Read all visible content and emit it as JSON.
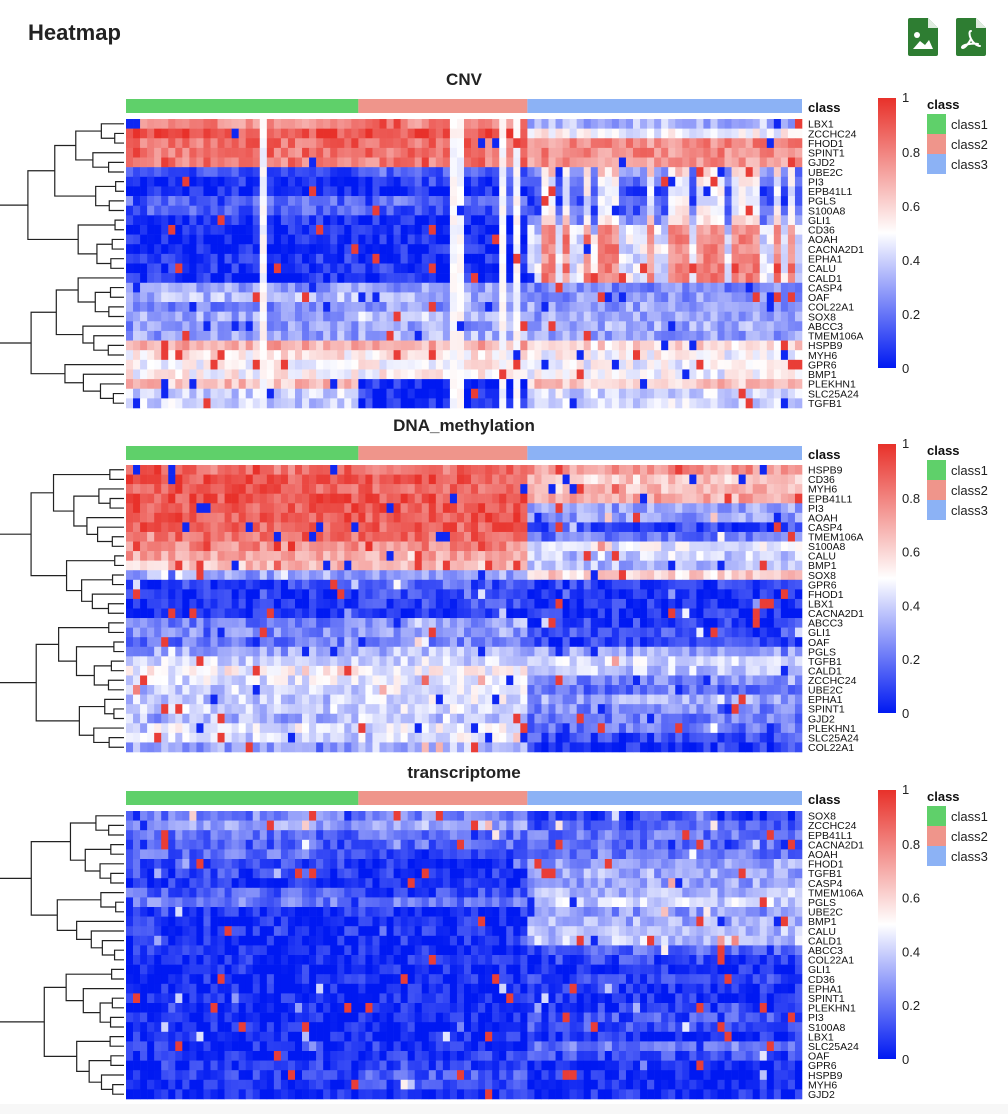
{
  "page": {
    "title": "Heatmap",
    "download_image_label": "Download image",
    "download_pdf_label": "Download PDF"
  },
  "chart_data": [
    {
      "type": "heatmap",
      "title": "CNV",
      "annotation_label": "class",
      "class_counts": {
        "class1": 33,
        "class2": 24,
        "class3": 39
      },
      "rows": [
        "LBX1",
        "ZCCHC24",
        "FHOD1",
        "SPINT1",
        "GJD2",
        "UBE2C",
        "PI3",
        "EPB41L1",
        "PGLS",
        "S100A8",
        "GLI1",
        "CD36",
        "AOAH",
        "CACNA2D1",
        "EPHA1",
        "CALU",
        "CALD1",
        "CASP4",
        "OAF",
        "COL22A1",
        "SOX8",
        "ABCC3",
        "TMEM106A",
        "HSPB9",
        "MYH6",
        "GPR6",
        "BMP1",
        "PLEKHN1",
        "SLC25A24",
        "TGFB1"
      ],
      "row_profiles": {
        "class1": [
          0.78,
          0.92,
          0.85,
          0.84,
          0.82,
          0.15,
          0.04,
          0.03,
          0.18,
          0.15,
          0.05,
          0.05,
          0.03,
          0.05,
          0.06,
          0.05,
          0.05,
          0.28,
          0.35,
          0.25,
          0.3,
          0.28,
          0.3,
          0.7,
          0.55,
          0.52,
          0.52,
          0.65,
          0.4,
          0.4
        ],
        "class2": [
          0.8,
          0.92,
          0.85,
          0.84,
          0.82,
          0.18,
          0.08,
          0.04,
          0.18,
          0.12,
          0.03,
          0.03,
          0.03,
          0.04,
          0.04,
          0.06,
          0.04,
          0.28,
          0.32,
          0.28,
          0.38,
          0.3,
          0.34,
          0.7,
          0.55,
          0.52,
          0.52,
          0.04,
          0.06,
          0.05
        ],
        "class3": [
          0.35,
          0.5,
          0.78,
          0.78,
          0.75,
          0.25,
          0.15,
          0.12,
          0.12,
          0.15,
          0.25,
          0.4,
          0.45,
          0.45,
          0.42,
          0.45,
          0.45,
          0.25,
          0.28,
          0.3,
          0.3,
          0.32,
          0.3,
          0.6,
          0.5,
          0.48,
          0.48,
          0.65,
          0.42,
          0.42
        ]
      },
      "colorbar": {
        "min": 0,
        "max": 1,
        "ticks": [
          "0",
          "0.2",
          "0.4",
          "0.6",
          "0.8",
          "1"
        ]
      },
      "legend": {
        "title": "class",
        "items": [
          "class1",
          "class2",
          "class3"
        ]
      }
    },
    {
      "type": "heatmap",
      "title": "DNA_methylation",
      "annotation_label": "class",
      "class_counts": {
        "class1": 33,
        "class2": 24,
        "class3": 39
      },
      "rows": [
        "HSPB9",
        "CD36",
        "MYH6",
        "EPB41L1",
        "PI3",
        "AOAH",
        "CASP4",
        "TMEM106A",
        "S100A8",
        "CALU",
        "BMP1",
        "SOX8",
        "GPR6",
        "FHOD1",
        "LBX1",
        "CACNA2D1",
        "ABCC3",
        "GLI1",
        "OAF",
        "PGLS",
        "TGFB1",
        "CALD1",
        "ZCCHC24",
        "UBE2C",
        "EPHA1",
        "SPINT1",
        "GJD2",
        "PLEKHN1",
        "SLC25A24",
        "COL22A1"
      ],
      "row_profiles": {
        "class1": [
          0.85,
          0.9,
          0.88,
          0.92,
          0.9,
          0.9,
          0.88,
          0.85,
          0.78,
          0.72,
          0.65,
          0.3,
          0.08,
          0.04,
          0.04,
          0.04,
          0.2,
          0.25,
          0.2,
          0.3,
          0.4,
          0.5,
          0.45,
          0.4,
          0.38,
          0.4,
          0.35,
          0.45,
          0.4,
          0.3
        ],
        "class2": [
          0.85,
          0.9,
          0.88,
          0.92,
          0.9,
          0.9,
          0.88,
          0.85,
          0.78,
          0.72,
          0.65,
          0.3,
          0.18,
          0.12,
          0.1,
          0.05,
          0.3,
          0.3,
          0.25,
          0.35,
          0.42,
          0.5,
          0.45,
          0.45,
          0.45,
          0.45,
          0.4,
          0.45,
          0.45,
          0.35
        ],
        "class3": [
          0.75,
          0.62,
          0.65,
          0.7,
          0.3,
          0.3,
          0.1,
          0.22,
          0.45,
          0.4,
          0.35,
          0.6,
          0.1,
          0.04,
          0.05,
          0.06,
          0.08,
          0.12,
          0.08,
          0.3,
          0.42,
          0.38,
          0.25,
          0.18,
          0.3,
          0.25,
          0.22,
          0.2,
          0.12,
          0.08
        ]
      },
      "colorbar": {
        "min": 0,
        "max": 1,
        "ticks": [
          "0",
          "0.2",
          "0.4",
          "0.6",
          "0.8",
          "1"
        ]
      },
      "legend": {
        "title": "class",
        "items": [
          "class1",
          "class2",
          "class3"
        ]
      }
    },
    {
      "type": "heatmap",
      "title": "transcriptome",
      "annotation_label": "class",
      "class_counts": {
        "class1": 33,
        "class2": 24,
        "class3": 39
      },
      "rows": [
        "SOX8",
        "ZCCHC24",
        "EPB41L1",
        "CACNA2D1",
        "AOAH",
        "FHOD1",
        "TGFB1",
        "CASP4",
        "TMEM106A",
        "PGLS",
        "UBE2C",
        "BMP1",
        "CALU",
        "CALD1",
        "ABCC3",
        "COL22A1",
        "GLI1",
        "CD36",
        "EPHA1",
        "SPINT1",
        "PLEKHN1",
        "PI3",
        "S100A8",
        "LBX1",
        "SLC25A24",
        "OAF",
        "GPR6",
        "HSPB9",
        "MYH6",
        "GJD2"
      ],
      "row_profiles": {
        "class1": [
          0.22,
          0.3,
          0.18,
          0.16,
          0.18,
          0.12,
          0.1,
          0.06,
          0.16,
          0.22,
          0.04,
          0.06,
          0.05,
          0.05,
          0.04,
          0.03,
          0.03,
          0.03,
          0.02,
          0.02,
          0.02,
          0.02,
          0.02,
          0.03,
          0.04,
          0.05,
          0.06,
          0.06,
          0.04,
          0.03
        ],
        "class2": [
          0.25,
          0.32,
          0.2,
          0.18,
          0.08,
          0.05,
          0.05,
          0.04,
          0.1,
          0.2,
          0.05,
          0.05,
          0.04,
          0.04,
          0.04,
          0.03,
          0.03,
          0.03,
          0.02,
          0.02,
          0.02,
          0.02,
          0.02,
          0.03,
          0.05,
          0.06,
          0.1,
          0.15,
          0.12,
          0.06
        ],
        "class3": [
          0.08,
          0.15,
          0.2,
          0.18,
          0.22,
          0.3,
          0.32,
          0.3,
          0.35,
          0.4,
          0.28,
          0.32,
          0.35,
          0.38,
          0.18,
          0.1,
          0.04,
          0.08,
          0.05,
          0.05,
          0.05,
          0.12,
          0.12,
          0.05,
          0.22,
          0.1,
          0.04,
          0.04,
          0.03,
          0.03
        ]
      },
      "colorbar": {
        "min": 0,
        "max": 1,
        "ticks": [
          "0",
          "0.2",
          "0.4",
          "0.6",
          "0.8",
          "1"
        ]
      },
      "legend": {
        "title": "class",
        "items": [
          "class1",
          "class2",
          "class3"
        ]
      }
    }
  ],
  "colors": {
    "low": "#0019f2",
    "mid": "#ffffff",
    "high": "#e8312a",
    "class1": "#5fd06a",
    "class2": "#ef958b",
    "class3": "#8cb2f5",
    "download_icon": "#2e7d32"
  }
}
